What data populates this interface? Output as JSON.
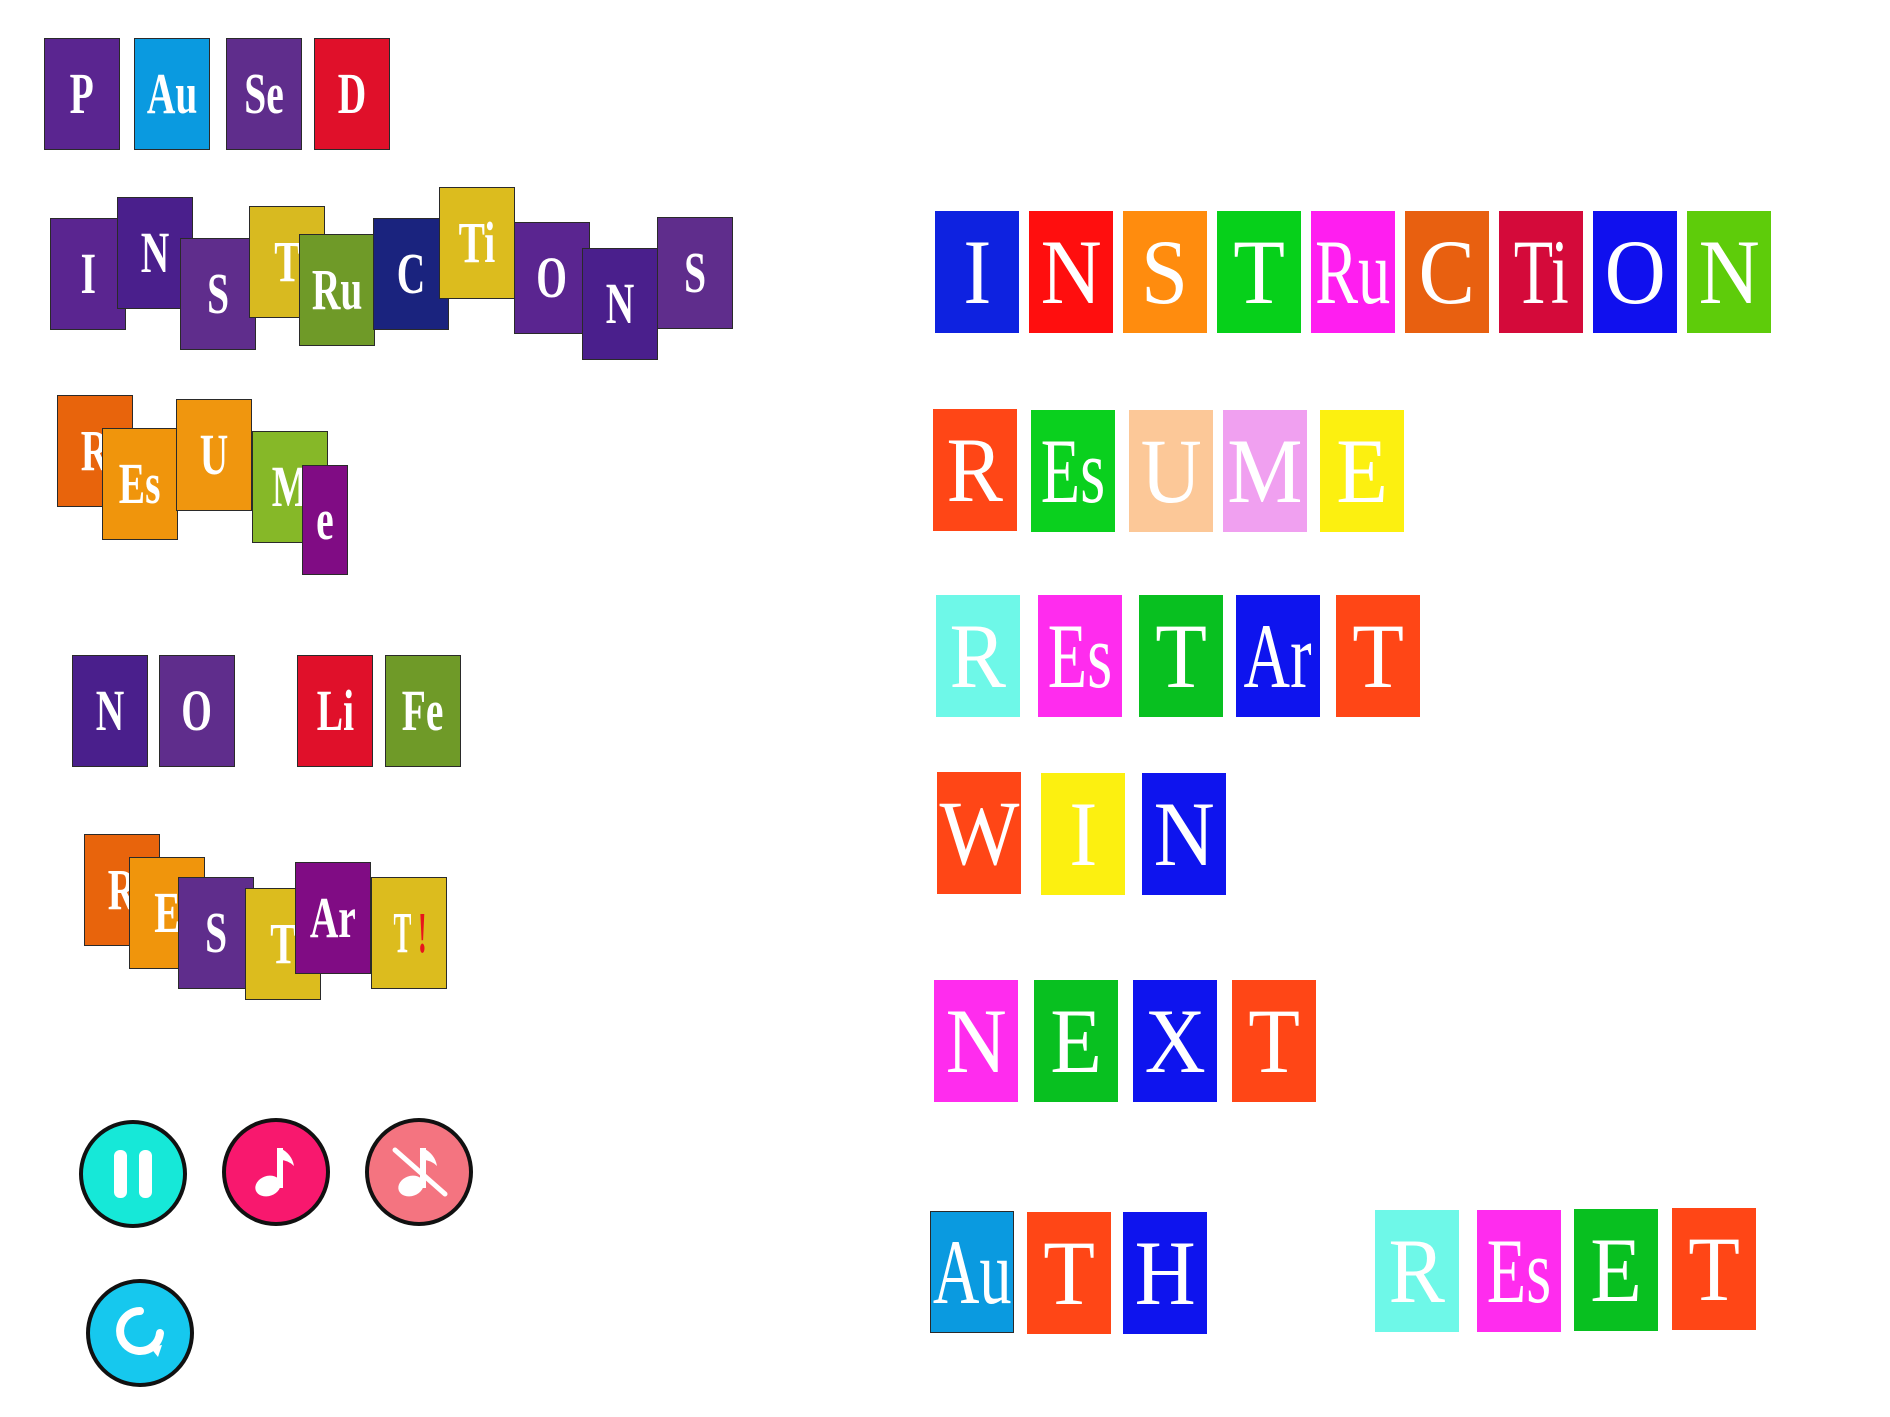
{
  "buttons": {
    "paused": {
      "letters": [
        "P",
        "Au",
        "Se",
        "D"
      ],
      "colors": [
        "#5a2590",
        "#0a9ae0",
        "#5f2d8c",
        "#e0102a"
      ]
    },
    "instructions": {
      "letters": [
        "I",
        "N",
        "S",
        "T",
        "Ru",
        "C",
        "Ti",
        "O",
        "N",
        "S"
      ],
      "colors": [
        "#5a2590",
        "#4a1f8c",
        "#5f2d8c",
        "#d8ba20",
        "#6f9a28",
        "#1a237e",
        "#dcbc1e",
        "#5a2590",
        "#4a1f8c",
        "#5f2d8c"
      ]
    },
    "resume": {
      "letters": [
        "R",
        "Es",
        "U",
        "M",
        "e"
      ],
      "colors": [
        "#e8640c",
        "#f0950c",
        "#f0960e",
        "#86b828",
        "#800c84"
      ]
    },
    "no_life": {
      "letters": [
        "N",
        "O",
        "Li",
        "Fe"
      ],
      "colors": [
        "#4a1f8c",
        "#5f2d8c",
        "#e0102a",
        "#6f9a28"
      ]
    },
    "restart_exclaim": {
      "letters": [
        "R",
        "E",
        "S",
        "T",
        "Ar",
        "T"
      ],
      "exclaim": "!",
      "colors": [
        "#e8640c",
        "#f0950c",
        "#5f2d8c",
        "#dcbc1e",
        "#800c84",
        "#dcbc1e"
      ]
    },
    "instruction_flat": {
      "letters": [
        "I",
        "N",
        "S",
        "T",
        "Ru",
        "C",
        "Ti",
        "O",
        "N"
      ],
      "colors": [
        "#0e22e0",
        "#ff0e0e",
        "#ff8c0e",
        "#06d01a",
        "#ff1ef0",
        "#e86010",
        "#d40a3a",
        "#1010ee",
        "#5ecc0a"
      ]
    },
    "resume_flat": {
      "letters": [
        "R",
        "Es",
        "U",
        "M",
        "E"
      ],
      "colors": [
        "#ff4616",
        "#0ad01e",
        "#fcc898",
        "#f0a0f0",
        "#fcf010"
      ]
    },
    "restart_flat": {
      "letters": [
        "R",
        "Es",
        "T",
        "Ar",
        "T"
      ],
      "colors": [
        "#6ef8e8",
        "#ff2cee",
        "#08c020",
        "#0e14ee",
        "#ff4616"
      ]
    },
    "win": {
      "letters": [
        "W",
        "I",
        "N"
      ],
      "colors": [
        "#ff4616",
        "#fcf010",
        "#0e14ee"
      ]
    },
    "next": {
      "letters": [
        "N",
        "E",
        "X",
        "T"
      ],
      "colors": [
        "#ff2cee",
        "#08c020",
        "#0e14ee",
        "#ff4616"
      ]
    },
    "auth": {
      "letters": [
        "Au",
        "T",
        "H"
      ],
      "colors": [
        "#0a9ae0",
        "#ff4616",
        "#0e14ee"
      ]
    },
    "reset": {
      "letters": [
        "R",
        "Es",
        "E",
        "T"
      ],
      "colors": [
        "#6ef8e8",
        "#ff2cee",
        "#08c020",
        "#ff4616"
      ]
    }
  },
  "icons": {
    "pause": {
      "name": "pause-icon",
      "color": "#16e8d8"
    },
    "music": {
      "name": "music-note-icon",
      "color": "#f8186e"
    },
    "mute": {
      "name": "music-mute-icon",
      "color": "#f47480"
    },
    "replay": {
      "name": "replay-icon",
      "color": "#16c8ee"
    }
  }
}
